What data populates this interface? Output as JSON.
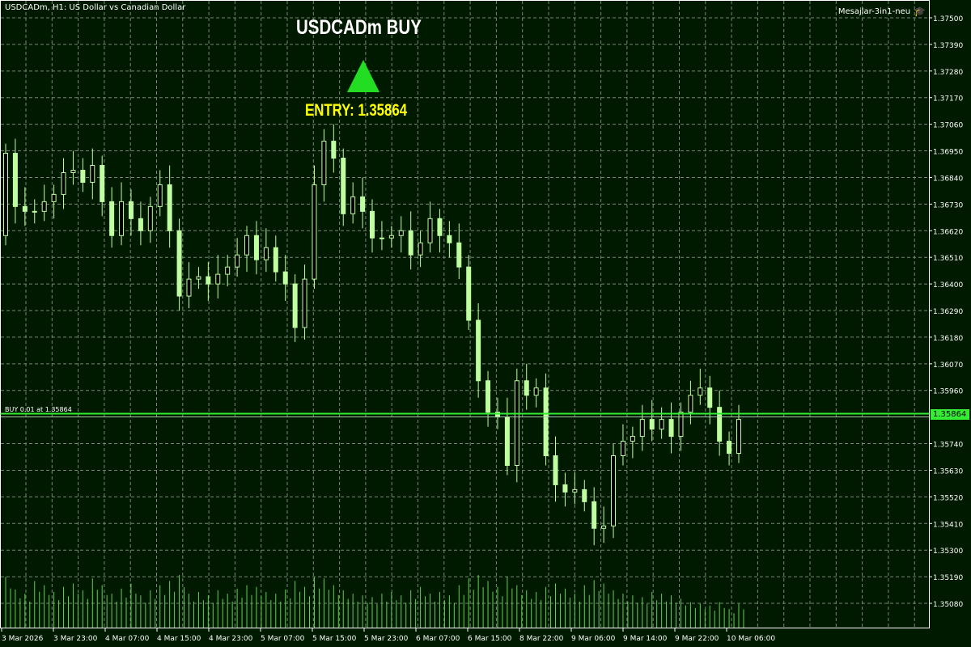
{
  "header": {
    "symbol_info": "USDCADm, H1:  US Dollar vs Canadian Dollar"
  },
  "indicator": {
    "name": "Mesajlar-3in1-neu",
    "icon": "graduation-cap-icon"
  },
  "signal": {
    "title": "USDCADm BUY",
    "arrow": "triangle-up-icon",
    "entry": "ENTRY: 1.35864",
    "arrow_color": "#22dd22",
    "entry_color": "#ffff00"
  },
  "position": {
    "label": "BUY 0.01 at 1.35864",
    "price": "1.35864",
    "line_color": "#33ee33"
  },
  "colors": {
    "background": "#001a00",
    "grid": "#778877",
    "candle": "#bfffa0"
  },
  "chart_data": {
    "type": "candlestick",
    "grid": true,
    "ylim": [
      1.35,
      1.3755
    ],
    "y_ticks": [
      "1.37500",
      "1.37390",
      "1.37280",
      "1.37170",
      "1.37060",
      "1.36950",
      "1.36840",
      "1.36730",
      "1.36620",
      "1.36510",
      "1.36400",
      "1.36290",
      "1.36180",
      "1.36070",
      "1.35960",
      "1.35740",
      "1.35630",
      "1.35520",
      "1.35410",
      "1.35300",
      "1.35190",
      "1.35080"
    ],
    "x_ticks": [
      "3 Mar 2026",
      "3 Mar 23:00",
      "4 Mar 07:00",
      "4 Mar 15:00",
      "4 Mar 23:00",
      "5 Mar 07:00",
      "5 Mar 15:00",
      "5 Mar 23:00",
      "6 Mar 07:00",
      "6 Mar 15:00",
      "8 Mar 22:00",
      "9 Mar 06:00",
      "9 Mar 14:00",
      "9 Mar 22:00",
      "10 Mar 06:00"
    ],
    "closes": [
      1.3694,
      1.3672,
      1.367,
      1.367,
      1.3674,
      1.3677,
      1.3686,
      1.3687,
      1.3682,
      1.3689,
      1.3674,
      1.366,
      1.3674,
      1.3667,
      1.3662,
      1.3672,
      1.3681,
      1.3662,
      1.3635,
      1.3642,
      1.3643,
      1.364,
      1.3644,
      1.3647,
      1.3652,
      1.366,
      1.365,
      1.3655,
      1.3645,
      1.364,
      1.3622,
      1.3642,
      1.3681,
      1.3699,
      1.3692,
      1.3669,
      1.3676,
      1.367,
      1.3659,
      1.3659,
      1.366,
      1.3662,
      1.3652,
      1.3657,
      1.3667,
      1.366,
      1.3657,
      1.3647,
      1.3625,
      1.36,
      1.3587,
      1.3585,
      1.3565,
      1.36,
      1.3594,
      1.3597,
      1.3569,
      1.3557,
      1.3554,
      1.3555,
      1.355,
      1.3539,
      1.354,
      1.3569,
      1.3575,
      1.3577,
      1.3584,
      1.358,
      1.3584,
      1.3577,
      1.3587,
      1.3594,
      1.3597,
      1.3589,
      1.3575,
      1.357,
      1.3584
    ],
    "first_open": 1.366,
    "volumes": [
      60,
      45,
      40,
      55,
      50,
      42,
      48,
      52,
      44,
      58,
      50,
      40,
      46,
      52,
      38,
      44,
      50,
      55,
      62,
      40,
      42,
      38,
      44,
      40,
      46,
      50,
      48,
      42,
      40,
      45,
      55,
      48,
      60,
      58,
      50,
      44,
      40,
      38,
      36,
      40,
      42,
      38,
      44,
      48,
      40,
      42,
      38,
      50,
      58,
      62,
      55,
      48,
      60,
      50,
      44,
      42,
      48,
      52,
      46,
      40,
      50,
      56,
      52,
      44,
      40,
      38,
      36,
      42,
      40,
      38,
      34,
      30,
      28,
      26,
      30,
      22,
      28
    ]
  }
}
